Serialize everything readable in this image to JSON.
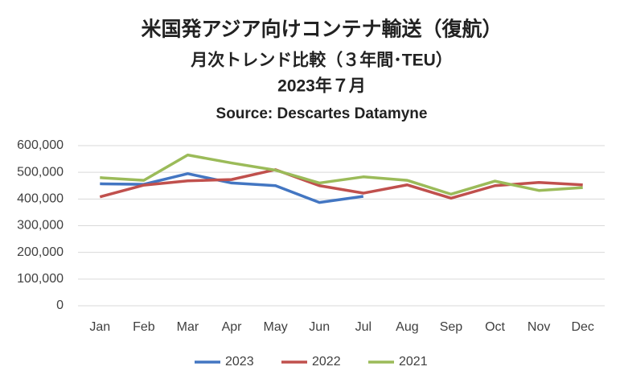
{
  "chart_data": {
    "type": "line",
    "title": "米国発アジア向けコンテナ輸送（復航）",
    "subtitle": [
      "月次トレンド比較（３年間･TEU）",
      "2023年７月",
      "Source: Descartes Datamyne"
    ],
    "categories": [
      "Jan",
      "Feb",
      "Mar",
      "Apr",
      "May",
      "Jun",
      "Jul",
      "Aug",
      "Sep",
      "Oct",
      "Nov",
      "Dec"
    ],
    "series": [
      {
        "name": "2023",
        "color": "#4376c2",
        "values": [
          457000,
          455000,
          495000,
          460000,
          450000,
          387000,
          410000,
          null,
          null,
          null,
          null,
          null
        ]
      },
      {
        "name": "2022",
        "color": "#c0504d",
        "values": [
          408000,
          452000,
          468000,
          473000,
          510000,
          450000,
          422000,
          453000,
          403000,
          450000,
          462000,
          453000
        ]
      },
      {
        "name": "2021",
        "color": "#9bbb59",
        "values": [
          480000,
          470000,
          565000,
          535000,
          508000,
          460000,
          483000,
          470000,
          418000,
          467000,
          432000,
          443000
        ]
      }
    ],
    "ylim": [
      0,
      600000
    ],
    "yticks": [
      0,
      {
        "value": 100000,
        "label": "100,000"
      },
      {
        "value": 200000,
        "label": "200,000"
      },
      {
        "value": 300000,
        "label": "300,000"
      },
      {
        "value": 400000,
        "label": "400,000"
      },
      {
        "value": 500000,
        "label": "500,000"
      },
      {
        "value": 600000,
        "label": "600,000"
      }
    ],
    "grid": true,
    "legend": "bottom"
  }
}
